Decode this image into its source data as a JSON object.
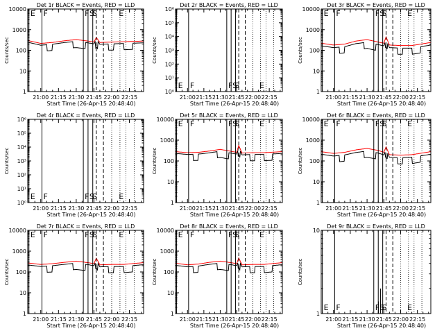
{
  "chart_data": {
    "common": {
      "type": "line",
      "xlabel": "Start Time (26-Apr-15 20:48:40)",
      "ylabel": "Counts/sec",
      "x_ticks": [
        "21:00",
        "21:15",
        "21:30",
        "21:45",
        "22:00",
        "22:15"
      ],
      "x_tick_minutes": [
        0,
        15,
        30,
        45,
        60,
        75
      ],
      "xlim_minutes_from_21_00": [
        -11,
        87
      ],
      "solid_markers": [
        {
          "label": "E",
          "minute": -10
        },
        {
          "label": "F",
          "minute": 1
        },
        {
          "label": "F",
          "minute": 36
        },
        {
          "label": "S",
          "minute": 40
        },
        {
          "label": "",
          "minute": 44
        }
      ],
      "dashed_markers": [
        {
          "label": "S",
          "minute": 47
        },
        {
          "label": "E",
          "minute": 53
        }
      ],
      "extra_label": {
        "label": "E",
        "minute": 66
      },
      "dotted_gridlines_minutes": [
        60,
        67,
        72,
        79
      ],
      "series_names": [
        "BLACK = Events",
        "RED = LLD"
      ],
      "colors": {
        "events": "#000000",
        "lld": "#ff0000"
      }
    },
    "panels": [
      {
        "title": "Det 1r BLACK = Events, RED = LLD",
        "yscale": "log",
        "ylim": [
          1,
          10000
        ],
        "y_ticks": [
          "1",
          "10",
          "100",
          "1000",
          "10000"
        ],
        "has_data": true,
        "profile": [
          [
            -11,
            300
          ],
          [
            0,
            215
          ],
          [
            10,
            240
          ],
          [
            20,
            290
          ],
          [
            30,
            330
          ],
          [
            40,
            280
          ],
          [
            45,
            250
          ],
          [
            47,
            420
          ],
          [
            50,
            240
          ],
          [
            60,
            250
          ],
          [
            70,
            260
          ],
          [
            87,
            280
          ]
        ],
        "ratio": 0.82,
        "gaps": [
          [
            5,
            10
          ],
          [
            27,
            38
          ],
          [
            57,
            62
          ],
          [
            70,
            78
          ]
        ],
        "gap_level": 0.5
      },
      {
        "title": "Det 2r BLACK = Events, RED = LLD",
        "yscale": "log",
        "ylim": [
          1,
          1000000
        ],
        "y_ticks": [
          "10⁰",
          "10¹",
          "10²",
          "10³",
          "10⁴",
          "10⁵",
          "10⁶"
        ],
        "has_data": false
      },
      {
        "title": "Det 3r BLACK = Events, RED = LLD",
        "yscale": "log",
        "ylim": [
          1,
          10000
        ],
        "y_ticks": [
          "1",
          "10",
          "100",
          "1000",
          "10000"
        ],
        "has_data": true,
        "profile": [
          [
            -11,
            220
          ],
          [
            0,
            180
          ],
          [
            10,
            200
          ],
          [
            20,
            280
          ],
          [
            30,
            330
          ],
          [
            40,
            250
          ],
          [
            45,
            220
          ],
          [
            47,
            450
          ],
          [
            50,
            180
          ],
          [
            60,
            170
          ],
          [
            70,
            170
          ],
          [
            87,
            240
          ]
        ],
        "ratio": 0.75,
        "gaps": [
          [
            5,
            10
          ],
          [
            27,
            38
          ],
          [
            57,
            62
          ],
          [
            70,
            78
          ]
        ],
        "gap_level": 0.5
      },
      {
        "title": "Det 4r BLACK = Events, RED = LLD",
        "yscale": "log",
        "ylim": [
          1,
          1000000
        ],
        "y_ticks": [
          "10⁰",
          "10¹",
          "10²",
          "10³",
          "10⁴",
          "10⁵",
          "10⁶"
        ],
        "has_data": false
      },
      {
        "title": "Det 5r BLACK = Events, RED = LLD",
        "yscale": "log",
        "ylim": [
          1,
          10000
        ],
        "y_ticks": [
          "1",
          "10",
          "100",
          "1000",
          "10000"
        ],
        "has_data": true,
        "profile": [
          [
            -11,
            280
          ],
          [
            0,
            250
          ],
          [
            10,
            260
          ],
          [
            20,
            300
          ],
          [
            30,
            360
          ],
          [
            40,
            290
          ],
          [
            45,
            260
          ],
          [
            47,
            560
          ],
          [
            50,
            240
          ],
          [
            60,
            250
          ],
          [
            70,
            250
          ],
          [
            87,
            280
          ]
        ],
        "ratio": 0.82,
        "gaps": [
          [
            5,
            10
          ],
          [
            27,
            38
          ],
          [
            57,
            62
          ],
          [
            70,
            78
          ]
        ],
        "gap_level": 0.5
      },
      {
        "title": "Det 6r BLACK = Events, RED = LLD",
        "yscale": "log",
        "ylim": [
          1,
          10000
        ],
        "y_ticks": [
          "1",
          "10",
          "100",
          "1000",
          "10000"
        ],
        "has_data": true,
        "profile": [
          [
            -11,
            280
          ],
          [
            0,
            230
          ],
          [
            10,
            260
          ],
          [
            20,
            340
          ],
          [
            30,
            400
          ],
          [
            40,
            320
          ],
          [
            45,
            260
          ],
          [
            47,
            480
          ],
          [
            50,
            200
          ],
          [
            60,
            190
          ],
          [
            70,
            200
          ],
          [
            87,
            280
          ]
        ],
        "ratio": 0.75,
        "gaps": [
          [
            5,
            10
          ],
          [
            27,
            38
          ],
          [
            57,
            62
          ],
          [
            70,
            78
          ]
        ],
        "gap_level": 0.5
      },
      {
        "title": "Det 7r BLACK = Events, RED = LLD",
        "yscale": "log",
        "ylim": [
          1,
          10000
        ],
        "y_ticks": [
          "1",
          "10",
          "100",
          "1000",
          "10000"
        ],
        "has_data": true,
        "profile": [
          [
            -11,
            270
          ],
          [
            0,
            230
          ],
          [
            10,
            250
          ],
          [
            20,
            290
          ],
          [
            30,
            330
          ],
          [
            40,
            280
          ],
          [
            45,
            250
          ],
          [
            47,
            460
          ],
          [
            50,
            220
          ],
          [
            60,
            230
          ],
          [
            70,
            230
          ],
          [
            87,
            280
          ]
        ],
        "ratio": 0.8,
        "gaps": [
          [
            5,
            10
          ],
          [
            27,
            38
          ],
          [
            57,
            62
          ],
          [
            70,
            78
          ]
        ],
        "gap_level": 0.5
      },
      {
        "title": "Det 8r BLACK = Events, RED = LLD",
        "yscale": "log",
        "ylim": [
          1,
          10000
        ],
        "y_ticks": [
          "1",
          "10",
          "100",
          "1000",
          "10000"
        ],
        "has_data": true,
        "profile": [
          [
            -11,
            260
          ],
          [
            0,
            220
          ],
          [
            10,
            240
          ],
          [
            20,
            290
          ],
          [
            30,
            330
          ],
          [
            40,
            280
          ],
          [
            45,
            250
          ],
          [
            47,
            470
          ],
          [
            50,
            220
          ],
          [
            60,
            230
          ],
          [
            70,
            230
          ],
          [
            87,
            280
          ]
        ],
        "ratio": 0.8,
        "gaps": [
          [
            5,
            10
          ],
          [
            27,
            38
          ],
          [
            57,
            62
          ],
          [
            70,
            78
          ]
        ],
        "gap_level": 0.5
      },
      {
        "title": "Det 9r BLACK = Events, RED = LLD",
        "yscale": "log",
        "ylim": [
          1,
          10
        ],
        "y_ticks": [
          "1",
          "10"
        ],
        "has_data": false,
        "spike": {
          "minute": 42,
          "value": 2
        }
      }
    ]
  }
}
